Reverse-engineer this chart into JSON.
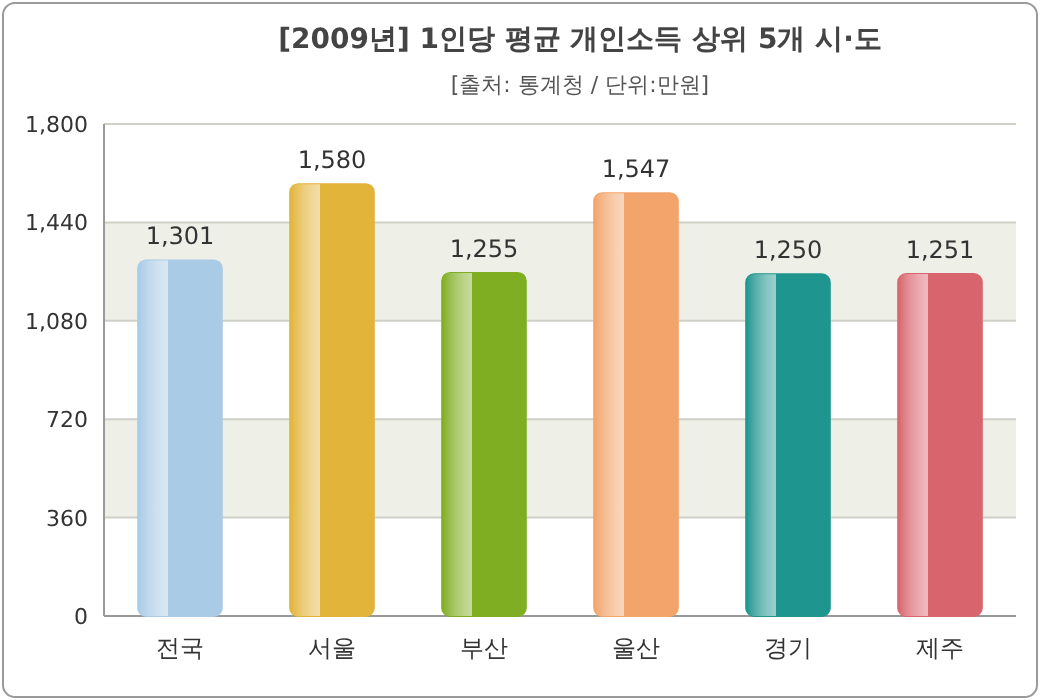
{
  "chart_data": {
    "type": "bar",
    "title": "[2009년] 1인당 평균 개인소득 상위 5개 시·도",
    "subtitle": "[출처: 통계청 / 단위:만원]",
    "categories": [
      "전국",
      "서울",
      "부산",
      "울산",
      "경기",
      "제주"
    ],
    "values": [
      1301,
      1580,
      1255,
      1547,
      1250,
      1251
    ],
    "colors": [
      "#a9cbe6",
      "#e2b43a",
      "#7fae22",
      "#f2a46a",
      "#1f958f",
      "#d8656e"
    ],
    "value_labels": [
      "1,301",
      "1,580",
      "1,255",
      "1,547",
      "1,250",
      "1,251"
    ],
    "ylim": [
      0,
      1800
    ],
    "yticks": [
      0,
      360,
      720,
      {
        "value": 1080,
        "label": "1,080"
      },
      {
        "value": 1440,
        "label": "1,440"
      },
      {
        "value": 1800,
        "label": "1,800"
      }
    ],
    "bands": [
      {
        "axis": "y",
        "from": 360,
        "to": 720,
        "color": "#eeefe6"
      },
      {
        "axis": "y",
        "from": 1080,
        "to": 1440,
        "color": "#eeefe6"
      }
    ],
    "grid": "y"
  }
}
